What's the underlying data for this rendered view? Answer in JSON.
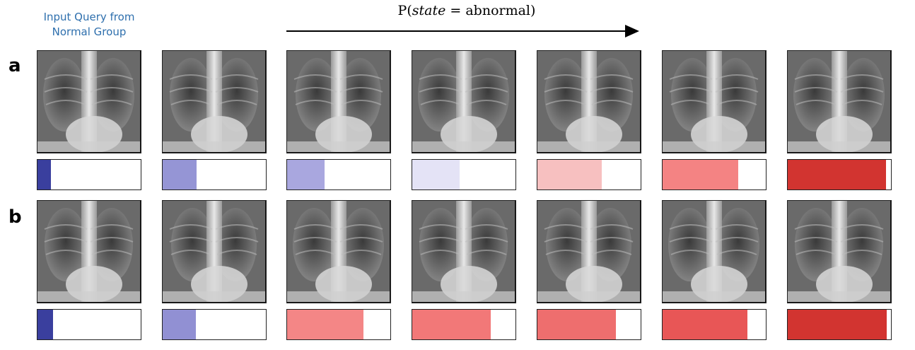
{
  "header": {
    "query_label_line1": "Input Query from",
    "query_label_line2": "Normal Group",
    "prob_title_prefix": "P(",
    "prob_title_var": "state",
    "prob_title_suffix": " = abnormal)"
  },
  "rows": [
    {
      "label": "a",
      "bars": [
        {
          "value": 0.13,
          "color": "#3a3f9e"
        },
        {
          "value": 0.33,
          "color": "#9595d5"
        },
        {
          "value": 0.36,
          "color": "#a9a7df"
        },
        {
          "value": 0.46,
          "color": "#e4e3f6"
        },
        {
          "value": 0.62,
          "color": "#f7c0c0"
        },
        {
          "value": 0.73,
          "color": "#f48383"
        },
        {
          "value": 0.95,
          "color": "#d23430"
        }
      ]
    },
    {
      "label": "b",
      "bars": [
        {
          "value": 0.15,
          "color": "#3a3f9e"
        },
        {
          "value": 0.32,
          "color": "#9190d3"
        },
        {
          "value": 0.74,
          "color": "#f48686"
        },
        {
          "value": 0.76,
          "color": "#f27878"
        },
        {
          "value": 0.76,
          "color": "#ee6e6e"
        },
        {
          "value": 0.82,
          "color": "#e85656"
        },
        {
          "value": 0.96,
          "color": "#d23430"
        }
      ]
    }
  ]
}
